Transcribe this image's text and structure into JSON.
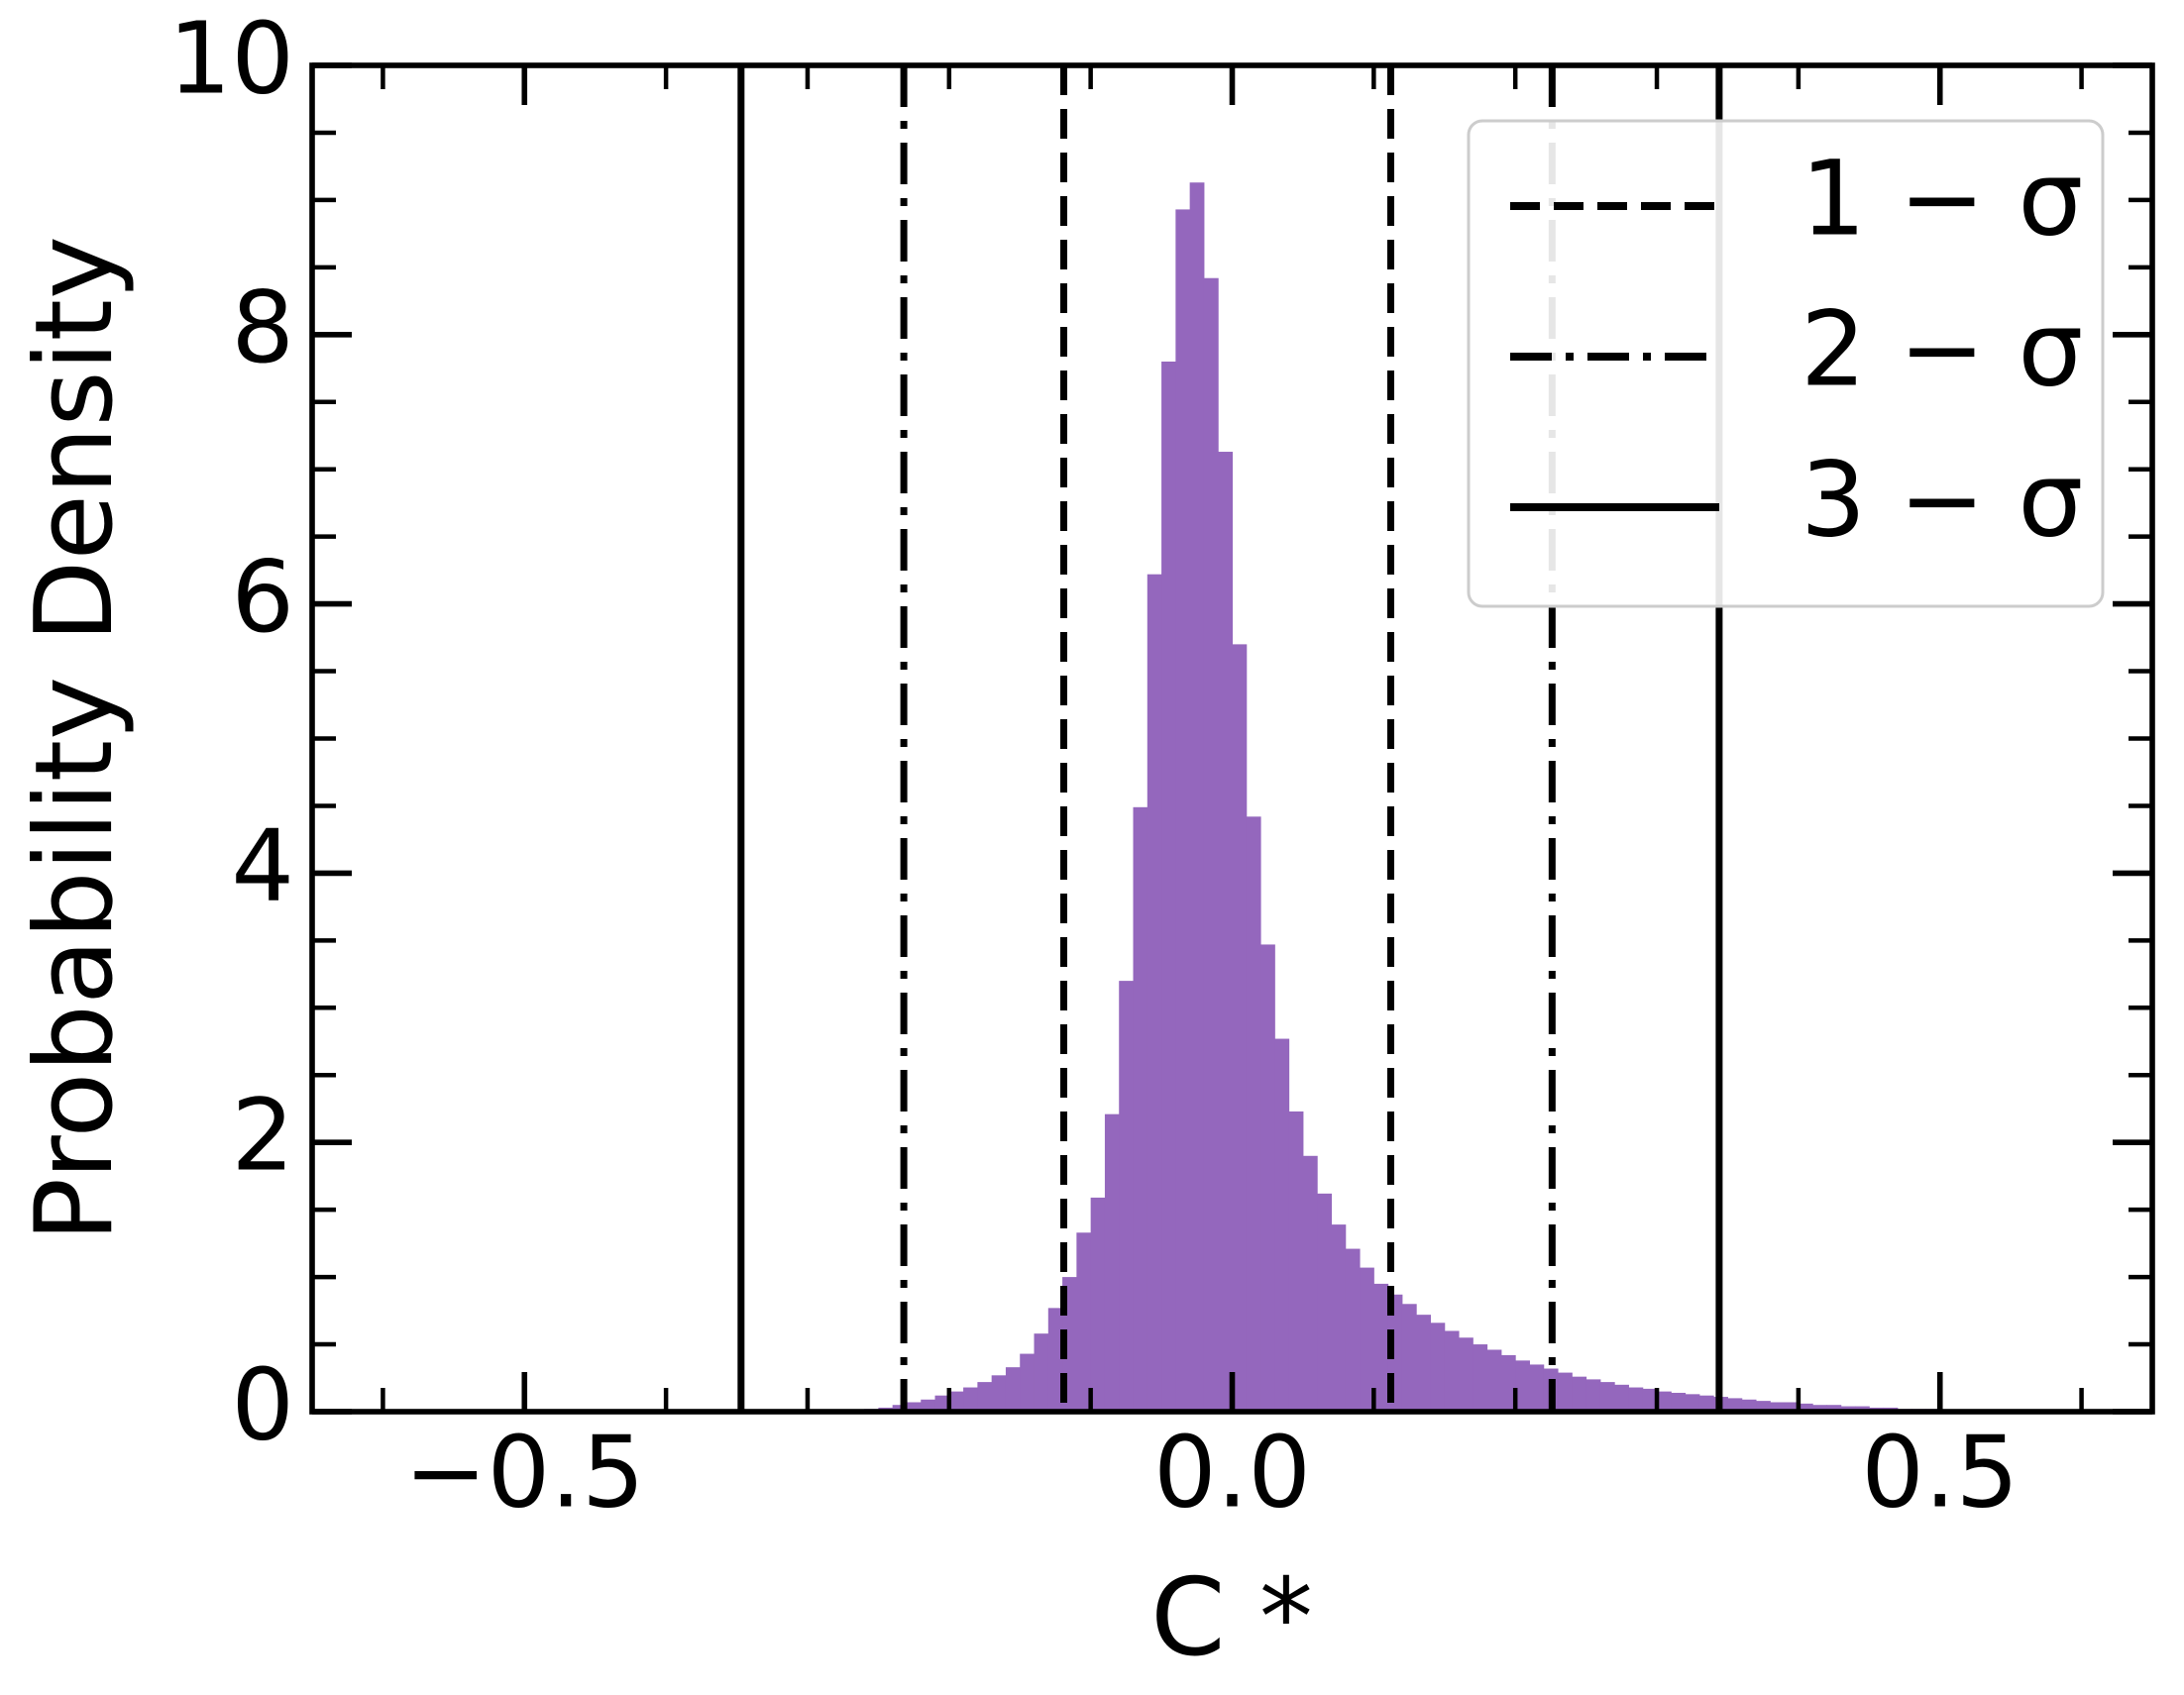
{
  "chart_data": {
    "type": "histogram",
    "x_label": "C *",
    "y_label": "Probability Density",
    "color": "#9467bd",
    "bins": [
      -0.27,
      -0.26,
      -0.25,
      -0.24,
      -0.23,
      -0.22,
      -0.21,
      -0.2,
      -0.19,
      -0.18,
      -0.17,
      -0.16,
      -0.15,
      -0.14,
      -0.13,
      -0.12,
      -0.11,
      -0.1,
      -0.09,
      -0.08,
      -0.07,
      -0.06,
      -0.05,
      -0.04,
      -0.03,
      -0.02,
      -0.01,
      0.0,
      0.01,
      0.02,
      0.03,
      0.04,
      0.05,
      0.06,
      0.07,
      0.08,
      0.09,
      0.1,
      0.11,
      0.12,
      0.13,
      0.14,
      0.15,
      0.16,
      0.17,
      0.18,
      0.19,
      0.2,
      0.21,
      0.22,
      0.23,
      0.24,
      0.25,
      0.26,
      0.27,
      0.28,
      0.29,
      0.3,
      0.31,
      0.32,
      0.33,
      0.34,
      0.35,
      0.36,
      0.37,
      0.38,
      0.39,
      0.4,
      0.41,
      0.42,
      0.43,
      0.44,
      0.45,
      0.46,
      0.47,
      0.48,
      0.49,
      0.5
    ],
    "values": [
      0.01,
      0.02,
      0.03,
      0.05,
      0.07,
      0.09,
      0.12,
      0.15,
      0.18,
      0.22,
      0.27,
      0.33,
      0.43,
      0.58,
      0.77,
      1.0,
      1.33,
      1.59,
      2.21,
      3.2,
      4.49,
      6.22,
      7.8,
      8.93,
      9.13,
      8.42,
      7.13,
      5.7,
      4.42,
      3.47,
      2.77,
      2.23,
      1.9,
      1.62,
      1.39,
      1.21,
      1.07,
      0.95,
      0.87,
      0.8,
      0.72,
      0.66,
      0.6,
      0.55,
      0.5,
      0.46,
      0.42,
      0.38,
      0.35,
      0.32,
      0.29,
      0.26,
      0.24,
      0.22,
      0.2,
      0.18,
      0.17,
      0.15,
      0.14,
      0.13,
      0.12,
      0.11,
      0.1,
      0.09,
      0.08,
      0.07,
      0.07,
      0.06,
      0.05,
      0.05,
      0.04,
      0.04,
      0.03,
      0.03,
      0.02,
      0.02,
      0.02
    ],
    "vlines": [
      {
        "name": "1 − σ",
        "style": "dashed",
        "color": "#000000",
        "values": [
          -0.119,
          0.112
        ]
      },
      {
        "name": "2 − σ",
        "style": "dashdot",
        "color": "#000000",
        "values": [
          -0.232,
          0.226
        ]
      },
      {
        "name": "3 − σ",
        "style": "solid",
        "color": "#000000",
        "values": [
          -0.347,
          0.344
        ]
      }
    ],
    "xlim": [
      -0.65,
      0.65
    ],
    "ylim": [
      0,
      10
    ],
    "xticks": [
      {
        "value": -0.5,
        "label": "−0.5"
      },
      {
        "value": 0.0,
        "label": "0.0"
      },
      {
        "value": 0.5,
        "label": "0.5"
      }
    ],
    "x_minor_ticks": [
      -0.6,
      -0.4,
      -0.3,
      -0.2,
      -0.1,
      0.1,
      0.2,
      0.3,
      0.4,
      0.6
    ],
    "yticks": [
      0,
      2,
      4,
      6,
      8,
      10
    ],
    "y_minor_ticks": [
      0.5,
      1,
      1.5,
      2.5,
      3,
      3.5,
      4.5,
      5,
      5.5,
      6.5,
      7,
      7.5,
      8.5,
      9,
      9.5
    ],
    "legend": "upper right"
  }
}
